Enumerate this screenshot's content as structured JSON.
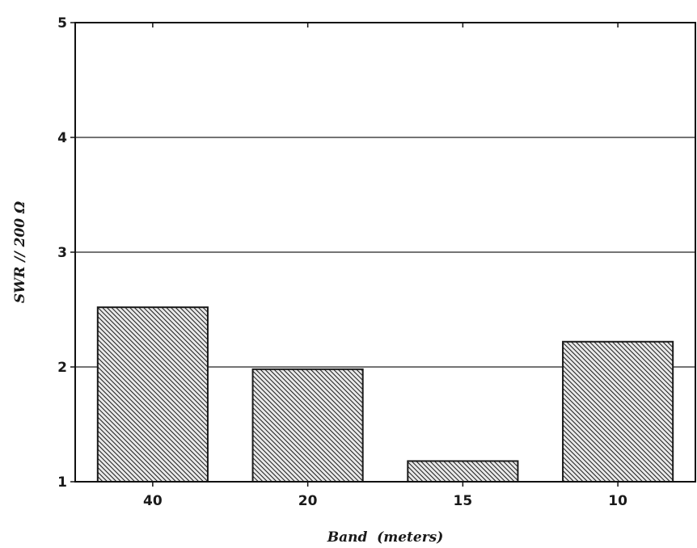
{
  "chart_data": {
    "type": "bar",
    "title": "",
    "xlabel": "Band  (meters)",
    "ylabel": "SWR // 200 Ω",
    "categories": [
      "40",
      "20",
      "15",
      "10"
    ],
    "values": [
      2.52,
      1.98,
      1.18,
      2.22
    ],
    "ylim": [
      1,
      5
    ],
    "yticks": [
      "1",
      "2",
      "3",
      "4",
      "5"
    ],
    "grid": "horizontal",
    "bar_fill": "diagonal-hatch",
    "colors": {
      "bar_line": "#1a1a1a",
      "grid": "#222222",
      "frame": "#111111"
    }
  }
}
